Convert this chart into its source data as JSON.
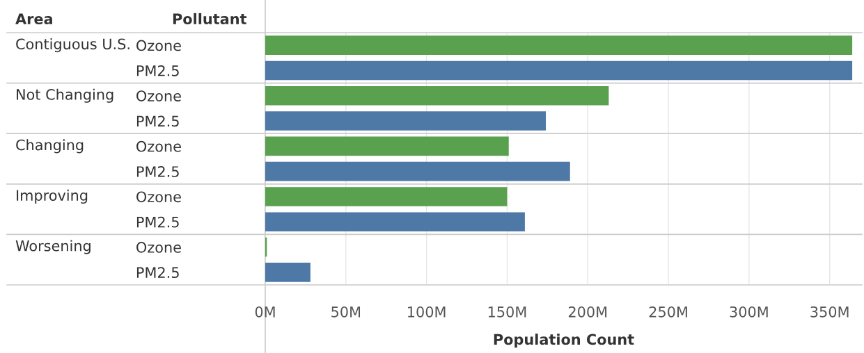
{
  "chart_data": {
    "type": "bar",
    "orientation": "horizontal",
    "categories": [
      "Ozone",
      "PM2.5",
      "Ozone",
      "PM2.5",
      "Ozone",
      "PM2.5",
      "Ozone",
      "PM2.5",
      "Ozone",
      "PM2.5"
    ],
    "values": [
      364,
      364,
      213,
      174,
      151,
      189,
      150,
      161,
      1,
      28
    ],
    "colors": [
      "#59a14f",
      "#4e79a7",
      "#59a14f",
      "#4e79a7",
      "#59a14f",
      "#4e79a7",
      "#59a14f",
      "#4e79a7",
      "#59a14f",
      "#4e79a7"
    ],
    "xlabel": "Population Count",
    "annotations": [
      "Area",
      "Pollutant",
      "Contiguous U.S.",
      "Not Changing",
      "Changing",
      "Improving",
      "Worsening"
    ],
    "xlim": [
      0,
      370
    ],
    "xticks": [
      {
        "value": 0,
        "label": "0M"
      },
      {
        "value": 50,
        "label": "50M"
      },
      {
        "value": 100,
        "label": "100M"
      },
      {
        "value": 150,
        "label": "150M"
      },
      {
        "value": 200,
        "label": "200M"
      },
      {
        "value": 250,
        "label": "250M"
      },
      {
        "value": 300,
        "label": "300M"
      },
      {
        "value": 350,
        "label": "350M"
      }
    ],
    "grid": "x"
  }
}
